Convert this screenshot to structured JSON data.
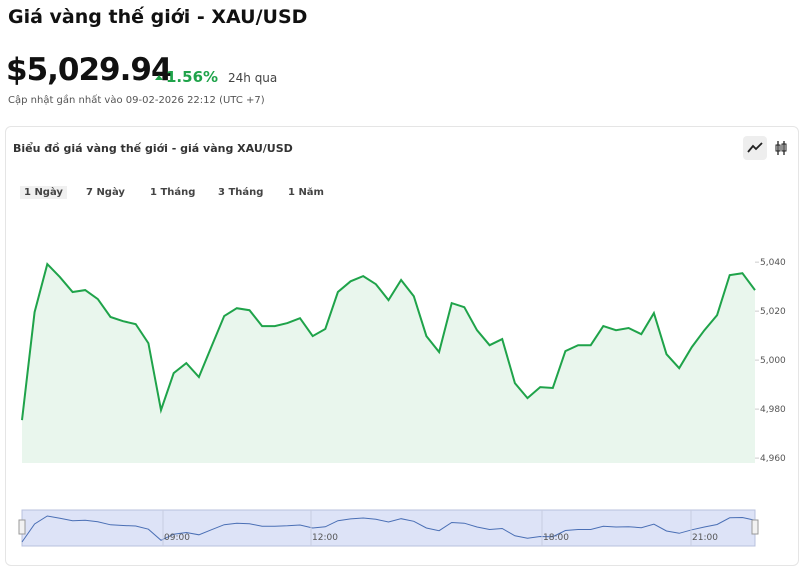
{
  "header": {
    "title": "Giá vàng thế giới - XAU/USD",
    "price": "$5,029.94",
    "change": "1.56%",
    "change_period": "24h qua",
    "updated": "Cập nhật gần nhất vào 09-02-2026 22:12 (UTC +7)"
  },
  "card": {
    "title": "Biểu đồ giá vàng thế giới - giá vàng XAU/USD",
    "tabs": [
      "1 Ngày",
      "7 Ngày",
      "1 Tháng",
      "3 Tháng",
      "1 Năm"
    ],
    "selected_tab": 0
  },
  "chart_data": {
    "type": "area",
    "color": "#1fa34a",
    "values": [
      4975.5,
      5019.6,
      5039.2,
      5033.9,
      5027.8,
      5028.6,
      5024.9,
      5017.6,
      5015.9,
      5014.7,
      5006.9,
      4979.6,
      4994.7,
      4998.8,
      4993.1,
      5005.7,
      5018.0,
      5021.2,
      5020.4,
      5013.9,
      5013.9,
      5015.1,
      5017.1,
      5009.8,
      5012.7,
      5027.8,
      5032.2,
      5034.3,
      5031.0,
      5024.5,
      5032.7,
      5026.1,
      5009.8,
      5003.3,
      5023.3,
      5021.6,
      5012.2,
      5006.1,
      5008.6,
      4990.6,
      4984.5,
      4989.0,
      4988.6,
      5003.7,
      5006.1,
      5006.1,
      5013.9,
      5012.2,
      5013.1,
      5010.6,
      5019.2,
      5002.4,
      4996.7,
      5005.3,
      5012.2,
      5018.4,
      5034.7,
      5035.5,
      5028.6
    ],
    "ylim": [
      4958,
      5047
    ],
    "yticks": [
      {
        "value": 4960,
        "label": "4,960"
      },
      {
        "value": 4980,
        "label": "4,980"
      },
      {
        "value": 5000,
        "label": "5,000"
      },
      {
        "value": 5020,
        "label": "5,020"
      },
      {
        "value": 5040,
        "label": "5,040"
      }
    ],
    "navigator_labels": [
      "09:00",
      "12:00",
      "18:00",
      "21:00"
    ]
  }
}
